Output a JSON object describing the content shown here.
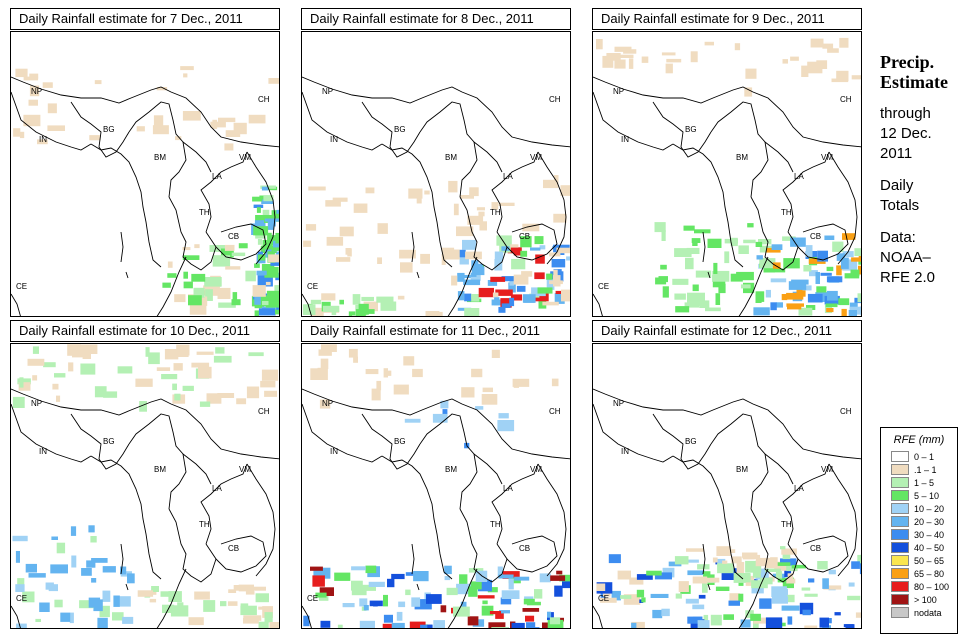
{
  "panels": [
    {
      "title": "Daily Rainfall estimate for  7 Dec., 2011"
    },
    {
      "title": "Daily Rainfall estimate for  8 Dec., 2011"
    },
    {
      "title": "Daily Rainfall estimate for  9 Dec., 2011"
    },
    {
      "title": "Daily Rainfall estimate for  10 Dec., 2011"
    },
    {
      "title": "Daily Rainfall estimate for  11 Dec., 2011"
    },
    {
      "title": "Daily Rainfall estimate for  12 Dec., 2011"
    }
  ],
  "country_labels": [
    "NP",
    "CH",
    "IN",
    "BG",
    "BM",
    "VM",
    "LA",
    "TH",
    "CB",
    "CE"
  ],
  "side_text": {
    "line1": "Precip.",
    "line2": "Estimate",
    "line3": "through",
    "line4": "12 Dec.",
    "line5": "2011",
    "line6": "Daily",
    "line7": "Totals",
    "line8": "Data:",
    "line9": "NOAA–",
    "line10": "RFE 2.0"
  },
  "legend": {
    "title": "RFE (mm)",
    "items": [
      {
        "label": "0 – 1",
        "color": "#ffffff"
      },
      {
        "label": ".1 – 1",
        "color": "#f0dcc0"
      },
      {
        "label": "1 – 5",
        "color": "#b4f0b4"
      },
      {
        "label": "5 – 10",
        "color": "#64e664"
      },
      {
        "label": "10 – 20",
        "color": "#a0d2f5"
      },
      {
        "label": "20 – 30",
        "color": "#64b4f0"
      },
      {
        "label": "30 – 40",
        "color": "#3c8cf0"
      },
      {
        "label": "40 – 50",
        "color": "#1450dc"
      },
      {
        "label": "50 – 65",
        "color": "#fae650"
      },
      {
        "label": "65 – 80",
        "color": "#faa014"
      },
      {
        "label": "80 – 100",
        "color": "#e61e1e"
      },
      {
        "label": "> 100",
        "color": "#a01414"
      },
      {
        "label": "nodata",
        "color": "#c8c8c8"
      }
    ]
  }
}
